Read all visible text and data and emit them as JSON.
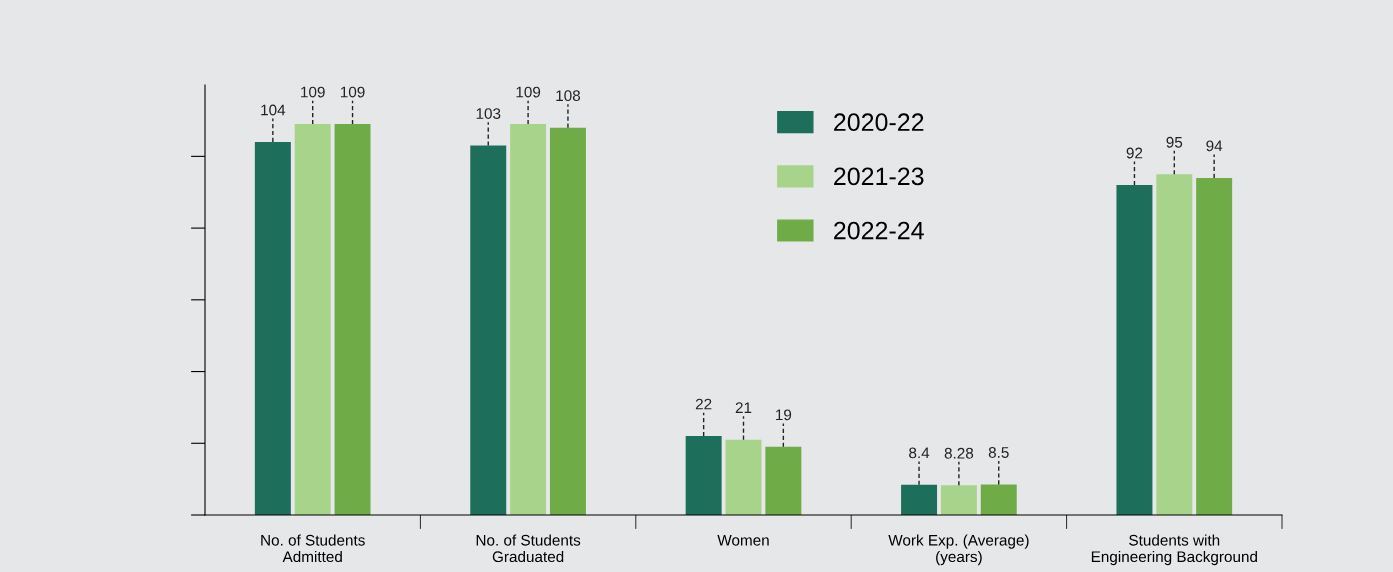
{
  "chart_data": {
    "type": "bar",
    "categories": [
      "No. of Students\nAdmitted",
      "No. of Students\nGraduated",
      "Women",
      "Work Exp. (Average)\n(years)",
      "Students with\nEngineering Background"
    ],
    "series": [
      {
        "name": "2020-22",
        "color": "#1e6e5c",
        "values": [
          104,
          103,
          22,
          8.4,
          92
        ]
      },
      {
        "name": "2021-23",
        "color": "#a8d38b",
        "values": [
          109,
          109,
          21,
          8.28,
          95
        ]
      },
      {
        "name": "2022-24",
        "color": "#6fac47",
        "values": [
          109,
          108,
          19,
          8.5,
          94
        ]
      }
    ],
    "tick_labels": "x",
    "data_labels": true,
    "legend": "top",
    "grid": false
  }
}
